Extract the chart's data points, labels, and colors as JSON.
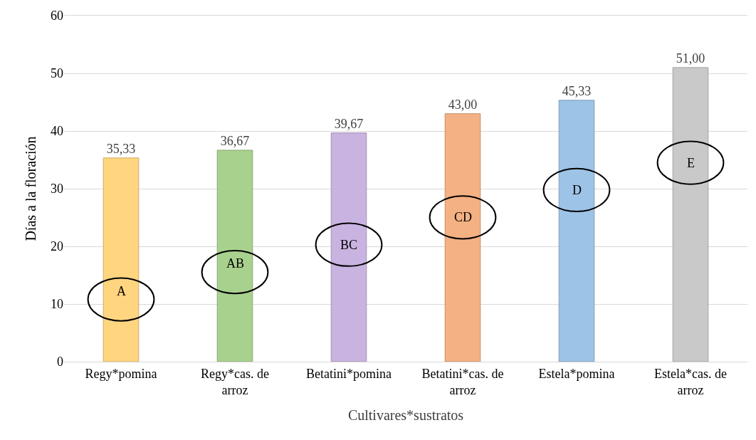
{
  "chart_data": {
    "type": "bar",
    "xlabel": "Cultivares*sustratos",
    "ylabel": "Días a la floración",
    "categories": [
      "Regy*pomina",
      "Regy*cas. de arroz",
      "Betatini*pomina",
      "Betatini*cas. de arroz",
      "Estela*pomina",
      "Estela*cas. de arroz"
    ],
    "values": [
      35.33,
      36.67,
      39.67,
      43.0,
      45.33,
      51.0
    ],
    "value_labels": [
      "35,33",
      "36,67",
      "39,67",
      "43,00",
      "45,33",
      "51,00"
    ],
    "colors": [
      "#ffd580",
      "#a9d18e",
      "#c9b3e0",
      "#f4b183",
      "#9dc3e6",
      "#c9c9c9"
    ],
    "ylim": [
      0,
      60
    ],
    "yticks": [
      0,
      10,
      20,
      30,
      40,
      50,
      60
    ],
    "grid": "y",
    "annotations": [
      "A",
      "AB",
      "BC",
      "CD",
      "D",
      "E"
    ]
  }
}
